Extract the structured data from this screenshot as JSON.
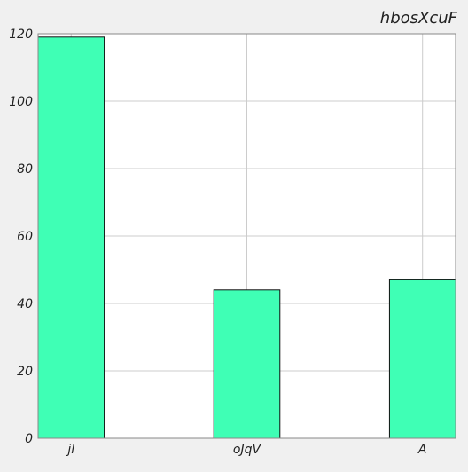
{
  "chart_data": {
    "type": "bar",
    "title": "hbosXcuF",
    "categories": [
      "jl",
      "oJqV",
      "A"
    ],
    "values": [
      119,
      44,
      47
    ],
    "ylim": [
      0,
      120
    ],
    "yticks": [
      0,
      20,
      40,
      60,
      80,
      100,
      120
    ],
    "grid": true,
    "colors": {
      "bar": "#3fffb5",
      "bar_edge": "#111111",
      "plot_bg": "#ffffff",
      "grid": "#cccccc",
      "axis": "#888888",
      "page_bg": "#f0f0f0"
    }
  }
}
